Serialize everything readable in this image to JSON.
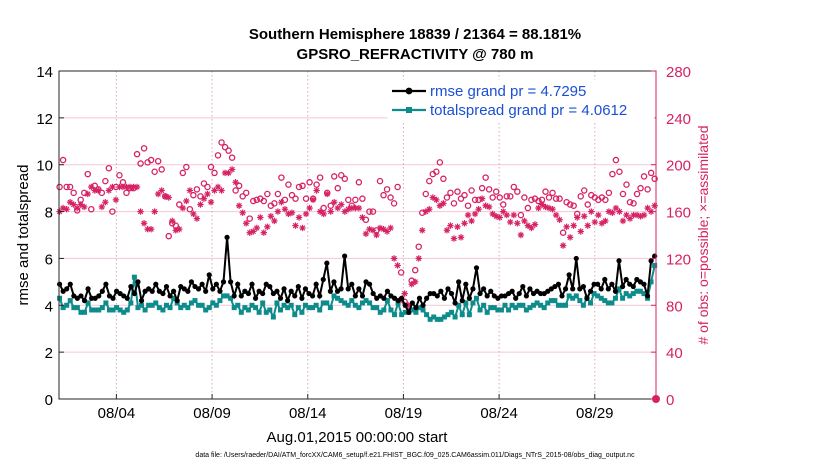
{
  "chart_data": {
    "type": "line",
    "title": "Southern Hemisphere 18839 / 21364 = 88.181%",
    "subtitle": "GPSRO_REFRACTIVITY @ 780 m",
    "xlabel": "Aug.01,2015 00:00:00 start",
    "ylabel": "rmse and totalspread",
    "ylabel_right": "# of obs: o=possible; ×=assimilated",
    "footer": "data file: /Users/raeder/DAI/ATM_forcXX/CAM6_setup/f.e21.FHIST_BGC.f09_025.CAM6assim.011/Diags_NTrS_2015-08/obs_diag_output.nc",
    "xlim": [
      0,
      31.2
    ],
    "ylim": [
      0,
      14
    ],
    "ylim_right": [
      0,
      280
    ],
    "x_ticks": [
      3,
      8,
      13,
      18,
      23,
      28
    ],
    "x_tick_labels": [
      "08/04",
      "08/09",
      "08/14",
      "08/19",
      "08/24",
      "08/29"
    ],
    "y_ticks": [
      0,
      2,
      4,
      6,
      8,
      10,
      12,
      14
    ],
    "y_ticks_right": [
      0,
      40,
      80,
      120,
      160,
      200,
      240,
      280
    ],
    "legend_position": "top-right",
    "colors": {
      "rmse": "#000000",
      "spread": "#0e8c8c",
      "obs": "#d62264",
      "legend_text": "#1a4fd6"
    },
    "series": [
      {
        "name": "rmse grand pr = 4.7295",
        "color": "#000000",
        "values": [
          4.9,
          4.6,
          4.7,
          4.9,
          4.4,
          4.3,
          4.4,
          4.2,
          4.7,
          4.3,
          4.3,
          4.4,
          4.6,
          4.9,
          4.4,
          4.3,
          4.6,
          4.5,
          4.4,
          4.3,
          4.8,
          4.5,
          5.0,
          4.2,
          4.6,
          4.7,
          4.6,
          4.9,
          4.6,
          4.5,
          4.8,
          4.4,
          4.6,
          4.2,
          4.8,
          4.7,
          4.6,
          5.0,
          4.8,
          4.7,
          4.9,
          4.6,
          5.3,
          4.7,
          4.9,
          4.6,
          5.0,
          6.9,
          5.0,
          4.4,
          4.9,
          4.4,
          4.6,
          4.5,
          4.9,
          4.3,
          4.6,
          4.5,
          4.9,
          4.8,
          4.5,
          4.6,
          4.3,
          4.7,
          4.2,
          4.6,
          4.4,
          4.8,
          4.3,
          4.7,
          4.5,
          4.4,
          4.9,
          4.4,
          5.1,
          5.8,
          4.6,
          5.0,
          4.6,
          4.7,
          6.1,
          4.7,
          4.9,
          4.4,
          4.7,
          4.4,
          5.0,
          4.9,
          4.5,
          4.3,
          4.4,
          4.3,
          4.6,
          4.4,
          4.3,
          4.2,
          4.3,
          4.0,
          3.7,
          4.1,
          3.9,
          4.3,
          4.0,
          4.3,
          4.5,
          4.5,
          4.4,
          4.6,
          4.3,
          4.7,
          4.5,
          4.1,
          5.0,
          4.2,
          4.9,
          4.3,
          4.7,
          5.6,
          4.5,
          4.7,
          4.4,
          4.6,
          4.4,
          4.3,
          4.4,
          4.4,
          4.5,
          4.6,
          4.3,
          4.5,
          4.8,
          4.4,
          4.7,
          4.5,
          4.6,
          4.5,
          4.5,
          4.6,
          4.7,
          4.8,
          4.9,
          4.4,
          4.7,
          5.3,
          4.7,
          6.0,
          4.7,
          4.8,
          4.3,
          4.6,
          4.9,
          4.9,
          4.7,
          5.1,
          4.7,
          4.9,
          4.6,
          5.9,
          4.8,
          5.1,
          4.9,
          4.8,
          5.1,
          5.0,
          4.9,
          4.4,
          5.9,
          6.1
        ],
        "marker": "filled-circle"
      },
      {
        "name": "totalspread grand pr = 4.0612",
        "color": "#0e8c8c",
        "values": [
          4.3,
          3.9,
          4.0,
          4.2,
          3.9,
          3.9,
          3.7,
          3.7,
          4.1,
          3.8,
          3.8,
          3.8,
          3.9,
          4.1,
          3.8,
          3.8,
          3.9,
          3.8,
          3.7,
          3.8,
          4.1,
          5.2,
          3.9,
          4.0,
          3.8,
          4.0,
          4.0,
          4.1,
          3.9,
          3.8,
          4.0,
          3.9,
          4.3,
          4.1,
          3.9,
          4.0,
          3.9,
          4.1,
          4.2,
          4.0,
          4.0,
          3.8,
          3.9,
          4.1,
          4.0,
          4.2,
          4.4,
          4.4,
          4.3,
          3.9,
          4.0,
          3.7,
          3.9,
          3.8,
          4.0,
          3.9,
          3.7,
          4.1,
          3.7,
          3.8,
          3.5,
          4.1,
          3.8,
          4.0,
          3.9,
          4.0,
          3.6,
          3.9,
          3.7,
          4.0,
          3.9,
          3.9,
          4.0,
          3.8,
          4.1,
          4.1,
          3.9,
          4.4,
          4.3,
          4.2,
          4.1,
          4.0,
          4.2,
          4.0,
          3.9,
          4.1,
          4.2,
          4.1,
          3.9,
          3.9,
          3.7,
          3.8,
          4.2,
          3.8,
          3.6,
          4.1,
          3.6,
          3.7,
          3.7,
          3.8,
          3.7,
          3.9,
          3.8,
          3.6,
          3.4,
          3.5,
          3.4,
          3.4,
          3.5,
          3.6,
          3.7,
          3.5,
          4.0,
          3.6,
          4.1,
          3.6,
          4.1,
          4.3,
          3.8,
          4.0,
          3.7,
          3.9,
          3.9,
          3.8,
          3.8,
          4.0,
          3.8,
          4.0,
          3.9,
          4.0,
          4.0,
          3.8,
          3.9,
          4.0,
          4.1,
          4.0,
          3.9,
          4.1,
          4.2,
          4.2,
          4.0,
          4.0,
          4.0,
          4.4,
          4.3,
          4.4,
          4.2,
          4.0,
          4.3,
          4.1,
          4.5,
          4.4,
          4.3,
          4.2,
          4.1,
          4.1,
          4.3,
          4.7,
          4.3,
          4.5,
          4.4,
          4.5,
          4.6,
          4.6,
          4.5,
          4.3,
          5.0,
          5.7
        ],
        "marker": "filled-square"
      }
    ],
    "obs_possible": [
      181,
      204,
      181,
      181,
      176,
      161,
      170,
      176,
      192,
      162,
      182,
      179,
      176,
      186,
      197,
      160,
      181,
      191,
      185,
      176,
      180,
      180,
      209,
      201,
      214,
      202,
      204,
      194,
      203,
      196,
      173,
      139,
      150,
      148,
      166,
      193,
      198,
      162,
      174,
      179,
      173,
      184,
      181,
      198,
      193,
      208,
      219,
      215,
      212,
      206,
      178,
      182,
      173,
      176,
      154,
      169,
      170,
      171,
      169,
      175,
      165,
      167,
      175,
      189,
      170,
      183,
      174,
      171,
      181,
      182,
      171,
      185,
      171,
      183,
      189,
      163,
      176,
      165,
      190,
      180,
      191,
      188,
      170,
      165,
      170,
      185,
      171,
      153,
      160,
      160,
      144,
      186,
      174,
      179,
      172,
      167,
      181,
      108,
      83,
      79,
      101,
      110,
      130,
      159,
      175,
      186,
      192,
      194,
      202,
      188,
      172,
      176,
      167,
      177,
      171,
      174,
      165,
      178,
      170,
      170,
      180,
      189,
      179,
      172,
      177,
      172,
      166,
      173,
      173,
      181,
      177,
      157,
      172,
      163,
      170,
      171,
      169,
      170,
      177,
      172,
      176,
      171,
      171,
      142,
      168,
      166,
      165,
      158,
      173,
      178,
      166,
      174,
      172,
      170,
      172,
      170,
      176,
      192,
      204,
      194,
      175,
      183,
      168,
      167,
      175,
      180,
      190,
      179,
      193,
      188
    ],
    "obs_assimilated": [
      160,
      163,
      162,
      168,
      166,
      163,
      166,
      164,
      175,
      181,
      178,
      178,
      164,
      168,
      178,
      181,
      170,
      181,
      181,
      181,
      181,
      181,
      181,
      160,
      150,
      145,
      145,
      160,
      175,
      178,
      173,
      172,
      152,
      144,
      145,
      163,
      169,
      178,
      158,
      154,
      166,
      171,
      175,
      168,
      178,
      181,
      178,
      193,
      193,
      196,
      185,
      165,
      159,
      150,
      142,
      143,
      146,
      155,
      142,
      147,
      156,
      152,
      160,
      168,
      162,
      158,
      159,
      148,
      155,
      146,
      158,
      163,
      170,
      178,
      160,
      158,
      175,
      160,
      168,
      163,
      166,
      160,
      162,
      163,
      163,
      163,
      155,
      141,
      145,
      144,
      140,
      146,
      145,
      143,
      146,
      120,
      114,
      85,
      90,
      80,
      98,
      100,
      120,
      144,
      160,
      162,
      172,
      170,
      165,
      167,
      144,
      148,
      137,
      147,
      138,
      150,
      157,
      152,
      158,
      162,
      171,
      165,
      164,
      158,
      156,
      155,
      160,
      157,
      151,
      157,
      150,
      140,
      152,
      148,
      146,
      149,
      163,
      166,
      164,
      163,
      162,
      157,
      153,
      131,
      147,
      138,
      148,
      155,
      143,
      156,
      148,
      160,
      151,
      157,
      150,
      152,
      160,
      159,
      163,
      160,
      152,
      157,
      154,
      157,
      157,
      156,
      157,
      163,
      160,
      165
    ]
  }
}
